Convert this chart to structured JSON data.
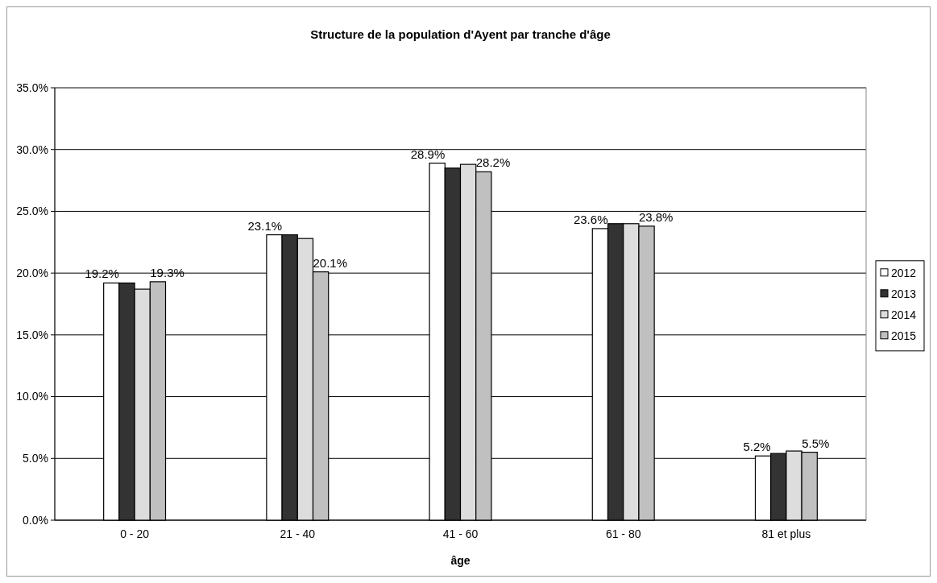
{
  "chart_data": {
    "type": "bar",
    "title": "Structure de la population d'Ayent par tranche d'âge",
    "xlabel": "âge",
    "categories": [
      "0 - 20",
      "21 - 40",
      "41 - 60",
      "61 - 80",
      "81 et plus"
    ],
    "series": [
      {
        "name": "2012",
        "color": "#ffffff",
        "values": [
          19.2,
          23.1,
          28.9,
          23.6,
          5.2
        ],
        "value_labels": [
          "19.2%",
          "23.1%",
          "28.9%",
          "23.6%",
          "5.2%"
        ]
      },
      {
        "name": "2013",
        "color": "#333333",
        "values": [
          19.2,
          23.1,
          28.5,
          24.0,
          5.4
        ]
      },
      {
        "name": "2014",
        "color": "#dddddd",
        "values": [
          18.7,
          22.8,
          28.8,
          24.0,
          5.6
        ]
      },
      {
        "name": "2015",
        "color": "#c0c0c0",
        "values": [
          19.3,
          20.1,
          28.2,
          23.8,
          5.5
        ],
        "value_labels": [
          "19.3%",
          "20.1%",
          "28.2%",
          "23.8%",
          "5.5%"
        ]
      }
    ],
    "ylim": [
      0,
      35
    ],
    "yticks": [
      {
        "value": 0,
        "label": "0.0%"
      },
      {
        "value": 5,
        "label": "5.0%"
      },
      {
        "value": 10,
        "label": "10.0%"
      },
      {
        "value": 15,
        "label": "15.0%"
      },
      {
        "value": 20,
        "label": "20.0%"
      },
      {
        "value": 25,
        "label": "25.0%"
      },
      {
        "value": 30,
        "label": "30.0%"
      },
      {
        "value": 35,
        "label": "35.0%"
      }
    ],
    "grid": "y",
    "legend": "right"
  }
}
